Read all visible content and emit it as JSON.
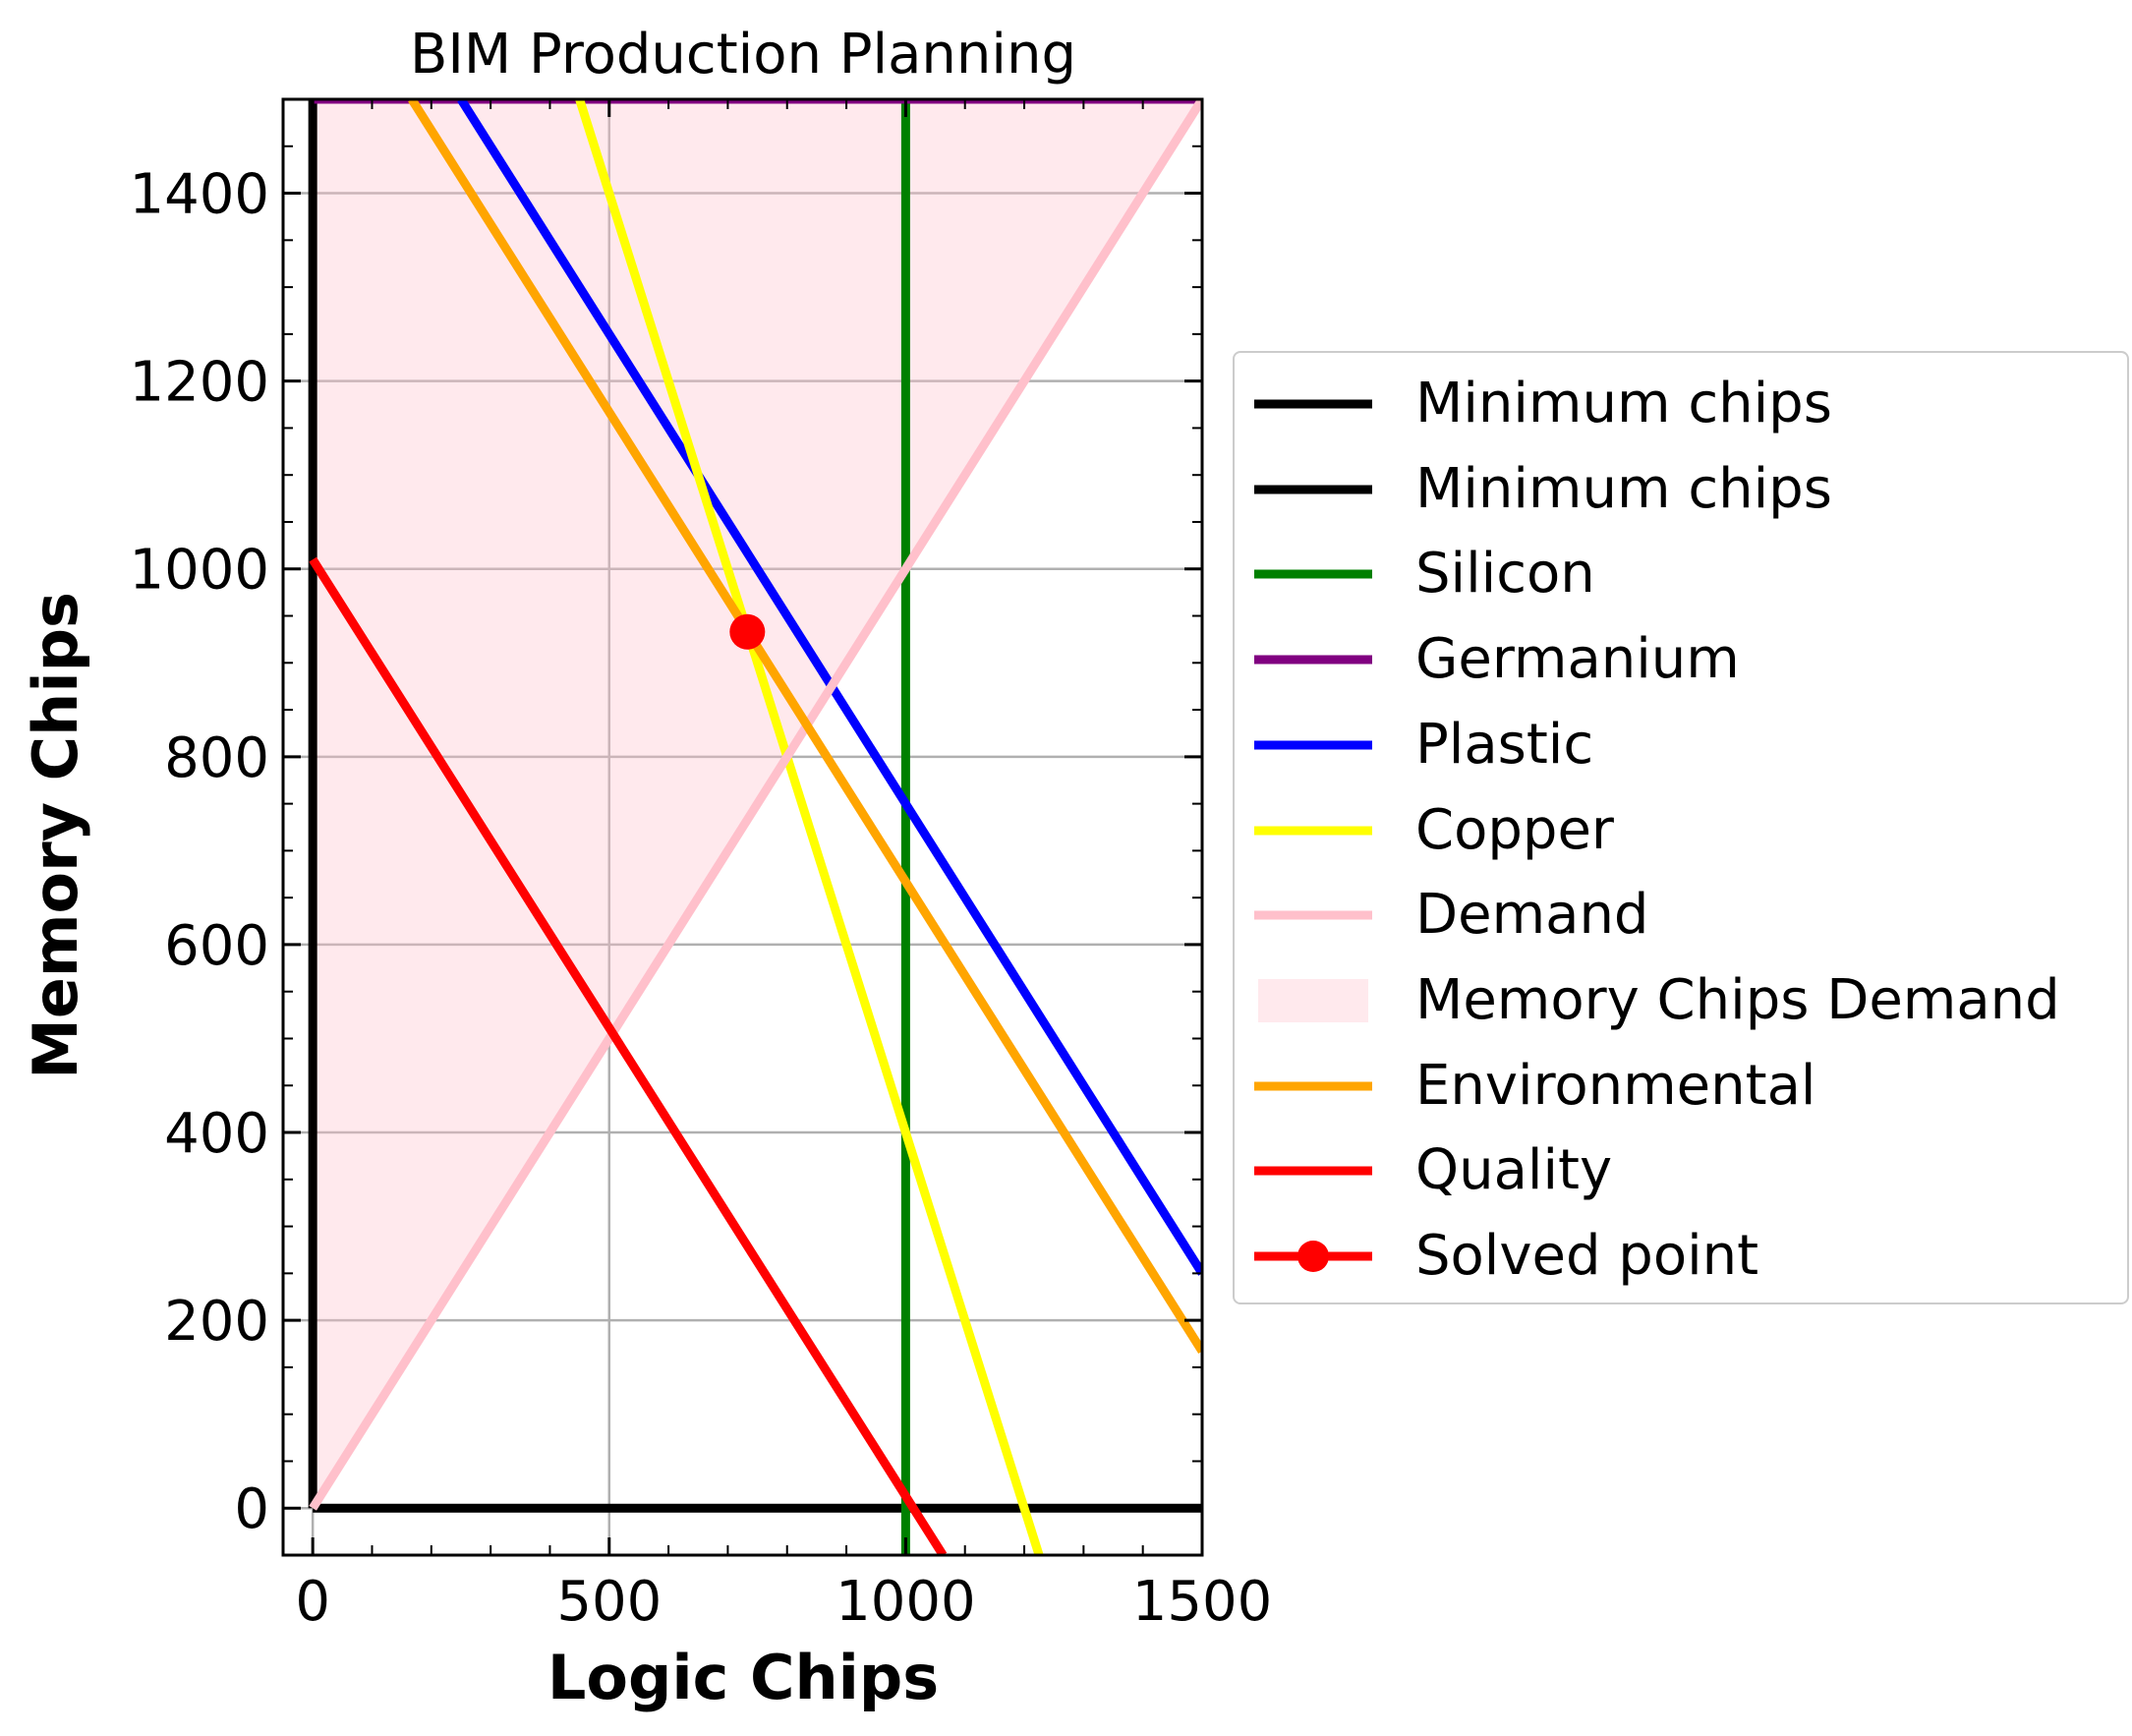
{
  "chart_data": {
    "type": "line",
    "title": "BIM Production Planning",
    "xlabel": "Logic Chips",
    "ylabel": "Memory Chips",
    "xlim": [
      -50,
      1500
    ],
    "ylim": [
      -50,
      1500
    ],
    "xticks": [
      0,
      500,
      1000,
      1500
    ],
    "yticks": [
      0,
      200,
      400,
      600,
      800,
      1000,
      1200,
      1400
    ],
    "grid": true,
    "legend_position": "outside-right",
    "series": [
      {
        "name": "Minimum chips",
        "color": "#000000",
        "points": [
          [
            0,
            0
          ],
          [
            0,
            1500
          ]
        ]
      },
      {
        "name": "Minimum chips",
        "color": "#000000",
        "points": [
          [
            0,
            0
          ],
          [
            1500,
            0
          ]
        ]
      },
      {
        "name": "Silicon",
        "color": "#008000",
        "points": [
          [
            1000,
            -50
          ],
          [
            1000,
            1500
          ]
        ]
      },
      {
        "name": "Germanium",
        "color": "#800080",
        "points": [
          [
            0,
            1500
          ],
          [
            1500,
            1500
          ]
        ]
      },
      {
        "name": "Plastic",
        "color": "#0000ff",
        "points": [
          [
            250,
            1500
          ],
          [
            1500,
            250
          ]
        ]
      },
      {
        "name": "Copper",
        "color": "#ffff00",
        "points": [
          [
            450,
            1500
          ],
          [
            1225,
            -50
          ]
        ]
      },
      {
        "name": "Demand",
        "color": "#ffc0cb",
        "points": [
          [
            0,
            0
          ],
          [
            1500,
            1500
          ]
        ]
      },
      {
        "name": "Environmental",
        "color": "#ffa500",
        "points": [
          [
            167,
            1500
          ],
          [
            1500,
            167
          ]
        ]
      },
      {
        "name": "Quality",
        "color": "#ff0000",
        "points": [
          [
            0,
            1010
          ],
          [
            1063,
            -50
          ]
        ]
      }
    ],
    "shaded_region": {
      "name": "Memory Chips Demand",
      "color": "#ffc0cb",
      "opacity": 0.35,
      "upper": [
        [
          0,
          1500
        ],
        [
          1500,
          1500
        ]
      ],
      "lower": [
        [
          0,
          0
        ],
        [
          1500,
          1500
        ]
      ]
    },
    "solved_point": {
      "name": "Solved point",
      "color": "#ff0000",
      "x": 733,
      "y": 933
    },
    "legend": [
      {
        "label": "Minimum chips",
        "color": "#000000",
        "kind": "line"
      },
      {
        "label": "Minimum chips",
        "color": "#000000",
        "kind": "line"
      },
      {
        "label": "Silicon",
        "color": "#008000",
        "kind": "line"
      },
      {
        "label": "Germanium",
        "color": "#800080",
        "kind": "line"
      },
      {
        "label": "Plastic",
        "color": "#0000ff",
        "kind": "line"
      },
      {
        "label": "Copper",
        "color": "#ffff00",
        "kind": "line"
      },
      {
        "label": "Demand",
        "color": "#ffc0cb",
        "kind": "line"
      },
      {
        "label": "Memory Chips Demand",
        "color": "#ffc0cb",
        "kind": "patch"
      },
      {
        "label": "Environmental",
        "color": "#ffa500",
        "kind": "line"
      },
      {
        "label": "Quality",
        "color": "#ff0000",
        "kind": "line"
      },
      {
        "label": "Solved point",
        "color": "#ff0000",
        "kind": "marker"
      }
    ]
  }
}
